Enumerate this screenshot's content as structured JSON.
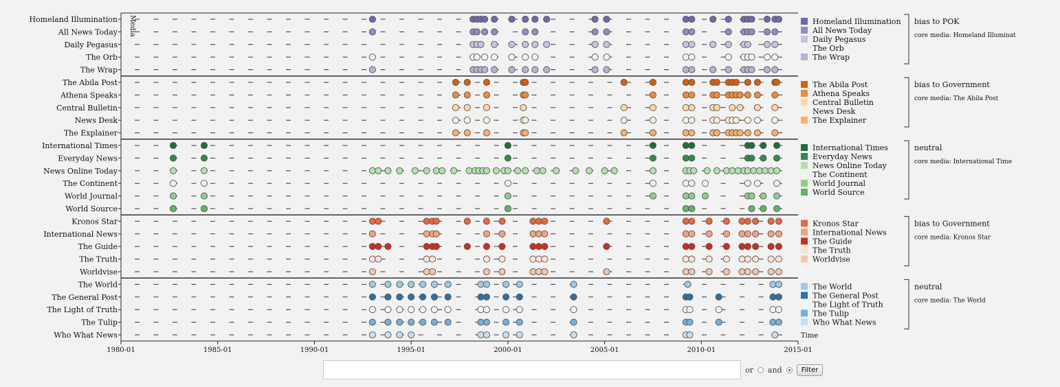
{
  "chart_data": {
    "type": "scatter",
    "xlabel": "Time",
    "ylabel": "Media",
    "x_ticks": [
      "1980-01",
      "1985-01",
      "1990-01",
      "1995-01",
      "2000-01",
      "2005-01",
      "2010-01",
      "2015-01"
    ],
    "xlim": [
      1980.0,
      2015.0
    ],
    "groups": [
      {
        "bias": "bias to POK",
        "core": "core media: Homeland Illuminat",
        "series": [
          {
            "name": "Homeland Illumination",
            "color": "#6b6ab0",
            "x": [
              1993.0,
              1998.2,
              1998.4,
              1998.6,
              1998.8,
              1999.3,
              2000.2,
              2000.9,
              2001.4,
              2002.0,
              2004.5,
              2005.1,
              2009.2,
              2009.5,
              2010.6,
              2011.4,
              2012.2,
              2012.4,
              2012.6,
              2013.4,
              2013.8,
              2014.0
            ]
          },
          {
            "name": "All News Today",
            "color": "#8f8cc4",
            "x": [
              1993.0,
              1998.2,
              1998.4,
              1998.8,
              1999.3,
              2000.9,
              2001.4,
              2004.5,
              2005.1,
              2009.2,
              2009.5,
              2011.4,
              2012.2,
              2012.4,
              2012.6,
              2013.4,
              2013.8
            ]
          },
          {
            "name": "Daily Pegasus",
            "color": "#c6c5e0",
            "x": [
              1998.2,
              1998.4,
              1998.6,
              1999.3,
              2000.2,
              2000.9,
              2001.4,
              2002.0,
              2004.5,
              2005.1,
              2009.2,
              2009.5,
              2010.6,
              2011.4,
              2012.2,
              2012.4,
              2013.4,
              2013.8
            ]
          },
          {
            "name": "The Orb",
            "color": "#f2f2f8",
            "x": [
              1993.0,
              1998.2,
              1998.4,
              1998.8,
              1999.3,
              2000.2,
              2000.9,
              2001.4,
              2004.5,
              2005.1,
              2009.2,
              2009.5,
              2011.4,
              2012.2,
              2012.4,
              2012.6,
              2013.4,
              2013.8
            ]
          },
          {
            "name": "The Wrap",
            "color": "#b4b4d6",
            "x": [
              1993.0,
              1998.2,
              1998.4,
              1998.6,
              1998.8,
              1999.3,
              2000.2,
              2000.9,
              2001.4,
              2002.0,
              2004.5,
              2005.1,
              2009.2,
              2009.5,
              2010.6,
              2011.4,
              2012.2,
              2012.4,
              2012.6,
              2013.4,
              2013.8
            ]
          }
        ]
      },
      {
        "bias": "bias to Government",
        "core": "core media: The Abila Post",
        "series": [
          {
            "name": "The Abila Post",
            "color": "#d95f0e",
            "x": [
              1997.3,
              1997.9,
              1998.9,
              2000.8,
              2000.9,
              2006.0,
              2007.5,
              2009.2,
              2009.5,
              2010.6,
              2010.8,
              2011.4,
              2011.6,
              2011.8,
              2012.4,
              2012.9,
              2013.8,
              2013.9
            ]
          },
          {
            "name": "Athena Speaks",
            "color": "#f08c3a",
            "x": [
              1997.3,
              1997.9,
              1998.9,
              2000.8,
              2000.9,
              2007.5,
              2009.2,
              2009.5,
              2010.6,
              2010.8,
              2011.4,
              2011.6,
              2011.8,
              2012.0,
              2012.4,
              2012.9,
              2013.8
            ]
          },
          {
            "name": "Central Bulletin",
            "color": "#fdd7a4",
            "x": [
              1997.3,
              1997.9,
              1998.9,
              2000.8,
              2006.0,
              2007.5,
              2009.2,
              2009.5,
              2010.6,
              2010.8,
              2011.6,
              2012.0,
              2012.9,
              2013.8
            ]
          },
          {
            "name": "News Desk",
            "color": "#fdeedd",
            "x": [
              1997.3,
              1997.9,
              1998.9,
              2000.8,
              2000.9,
              2006.0,
              2007.5,
              2009.2,
              2009.5,
              2010.6,
              2010.8,
              2011.4,
              2011.6,
              2011.8,
              2012.4,
              2012.9,
              2013.8
            ]
          },
          {
            "name": "The Explainer",
            "color": "#fdae6b",
            "x": [
              1997.3,
              1997.9,
              1998.9,
              2000.8,
              2000.9,
              2006.0,
              2007.5,
              2009.2,
              2009.5,
              2010.6,
              2010.8,
              2011.4,
              2011.6,
              2011.8,
              2012.0,
              2012.4,
              2012.9,
              2013.8
            ]
          }
        ]
      },
      {
        "bias": "neutral",
        "core": "core media: International Time",
        "series": [
          {
            "name": "International Times",
            "color": "#1f6e3c",
            "x": [
              1982.7,
              1984.3,
              2000.0,
              2007.5,
              2009.2,
              2009.5,
              2012.4,
              2012.6,
              2013.2,
              2013.9
            ]
          },
          {
            "name": "Everyday News",
            "color": "#2f8b4f",
            "x": [
              1982.7,
              1984.3,
              2000.0,
              2007.5,
              2009.2,
              2009.5,
              2012.4,
              2012.6,
              2013.2,
              2013.9
            ]
          },
          {
            "name": "News Online Today",
            "color": "#b4dfae",
            "x": [
              1982.7,
              1984.3,
              1993.0,
              1993.3,
              1993.8,
              1994.4,
              1995.2,
              1995.8,
              1996.3,
              1996.6,
              1997.2,
              1998.0,
              1998.3,
              1998.5,
              1998.7,
              1998.9,
              1999.4,
              1999.8,
              2000.0,
              2000.5,
              2000.9,
              2001.5,
              2001.8,
              2002.5,
              2003.5,
              2004.2,
              2005.0,
              2005.5,
              2007.5,
              2009.2,
              2009.4,
              2009.6,
              2010.3,
              2010.8,
              2011.3,
              2011.6,
              2011.9,
              2012.2,
              2012.4,
              2012.7,
              2013.0,
              2013.3,
              2013.6,
              2013.9
            ]
          },
          {
            "name": "The Continent",
            "color": "#eef7ec",
            "x": [
              1982.7,
              1984.3,
              2000.0,
              2007.5,
              2009.2,
              2009.5,
              2010.2,
              2012.4,
              2012.9,
              2013.9
            ]
          },
          {
            "name": "World Journal",
            "color": "#8fce8a",
            "x": [
              1982.7,
              1984.3,
              2000.0,
              2007.5,
              2009.2,
              2009.5,
              2010.2,
              2012.4,
              2012.6,
              2013.2,
              2013.9
            ]
          },
          {
            "name": "World Source",
            "color": "#62b368",
            "x": [
              1982.7,
              1984.3,
              2000.0,
              2009.2,
              2009.5,
              2012.6,
              2013.2,
              2013.9
            ]
          }
        ]
      },
      {
        "bias": "bias to Government",
        "core": "core media: Kronos Star",
        "series": [
          {
            "name": "Kronos Star",
            "color": "#e8683f",
            "x": [
              1993.0,
              1993.3,
              1995.8,
              1996.1,
              1996.3,
              1997.9,
              1998.9,
              1999.7,
              2001.3,
              2001.6,
              2001.9,
              2005.1,
              2009.2,
              2009.5,
              2010.4,
              2011.3,
              2012.1,
              2012.4,
              2012.8,
              2013.6,
              2014.0
            ]
          },
          {
            "name": "International News",
            "color": "#f4a27e",
            "x": [
              1993.0,
              1995.8,
              1996.1,
              1996.3,
              1998.9,
              1999.7,
              2001.3,
              2001.6,
              2001.9,
              2009.2,
              2009.5,
              2010.4,
              2011.3,
              2012.1,
              2012.4,
              2012.8,
              2013.6,
              2014.0
            ]
          },
          {
            "name": "The Guide",
            "color": "#c9301f",
            "x": [
              1993.0,
              1993.3,
              1993.8,
              1995.8,
              1996.1,
              1996.3,
              1997.9,
              1998.9,
              1999.7,
              2001.3,
              2001.6,
              2001.9,
              2005.1,
              2009.2,
              2009.5,
              2010.4,
              2011.3,
              2012.1,
              2012.4,
              2012.8,
              2013.6,
              2014.0
            ]
          },
          {
            "name": "The Truth",
            "color": "#fbe2d4",
            "x": [
              1993.0,
              1993.3,
              1995.8,
              1996.1,
              1998.9,
              1999.7,
              2001.3,
              2001.6,
              2001.9,
              2009.2,
              2009.5,
              2010.4,
              2011.3,
              2012.1,
              2012.4,
              2012.8,
              2013.6,
              2014.0
            ]
          },
          {
            "name": "Worldvise",
            "color": "#f7c4a6",
            "x": [
              1993.0,
              1995.8,
              1996.1,
              1998.9,
              1999.7,
              2001.3,
              2001.6,
              2001.9,
              2005.1,
              2009.2,
              2009.5,
              2010.4,
              2011.3,
              2012.1,
              2012.4,
              2012.8,
              2013.6,
              2014.0
            ]
          }
        ]
      },
      {
        "bias": "neutral",
        "core": "core media: The World",
        "series": [
          {
            "name": "The World",
            "color": "#9ec9e2",
            "x": [
              1993.0,
              1993.8,
              1994.4,
              1995.0,
              1995.6,
              1996.2,
              1996.9,
              1998.6,
              1998.9,
              1999.9,
              2000.6,
              2003.4,
              2009.3,
              2013.7,
              2014.0
            ]
          },
          {
            "name": "The General Post",
            "color": "#2f6fa7",
            "x": [
              1993.0,
              1993.8,
              1994.4,
              1995.0,
              1995.6,
              1996.2,
              1996.9,
              1998.6,
              1998.9,
              1999.9,
              2000.6,
              2003.4,
              2009.2,
              2009.4,
              2010.9,
              2013.7,
              2014.0
            ]
          },
          {
            "name": "The Light of Truth",
            "color": "#eef5fa",
            "x": [
              1993.0,
              1993.8,
              1994.4,
              1995.0,
              1995.6,
              1996.2,
              1996.9,
              1998.6,
              1998.9,
              1999.9,
              2000.6,
              2003.4,
              2009.2,
              2009.4,
              2010.9,
              2013.7,
              2014.0
            ]
          },
          {
            "name": "The Tulip",
            "color": "#79aed6",
            "x": [
              1993.0,
              1993.8,
              1994.4,
              1995.0,
              1995.6,
              1996.2,
              1996.9,
              1998.6,
              1998.9,
              1999.9,
              2000.6,
              2003.4,
              2009.2,
              2009.4,
              2010.9,
              2013.7,
              2014.0
            ]
          },
          {
            "name": "Who What News",
            "color": "#c6dff0",
            "x": [
              1993.0,
              1993.8,
              1994.4,
              1995.0,
              1998.6,
              1998.9,
              1999.9,
              2000.6,
              2003.4,
              2009.2,
              2009.4,
              2013.8
            ]
          }
        ]
      }
    ]
  },
  "filter": {
    "input_value": "",
    "or_label": "or",
    "and_label": "and",
    "selected_mode": "and",
    "button_label": "Filter"
  }
}
